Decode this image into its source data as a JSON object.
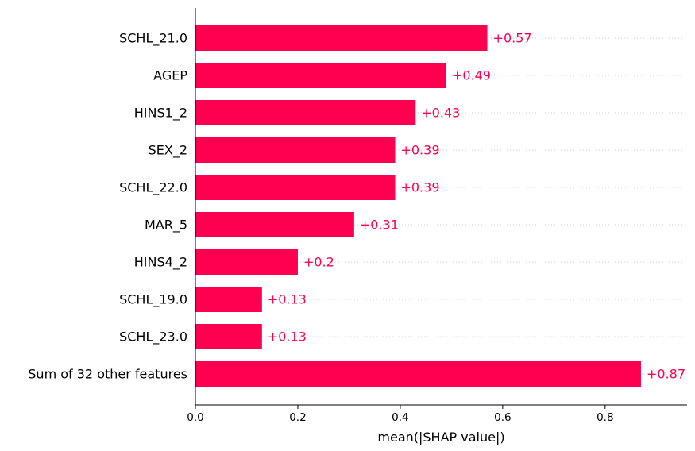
{
  "chart_data": {
    "type": "bar",
    "orientation": "horizontal",
    "categories": [
      "SCHL_21.0",
      "AGEP",
      "HINS1_2",
      "SEX_2",
      "SCHL_22.0",
      "MAR_5",
      "HINS4_2",
      "SCHL_19.0",
      "SCHL_23.0",
      "Sum of 32 other features"
    ],
    "values": [
      0.57,
      0.49,
      0.43,
      0.39,
      0.39,
      0.31,
      0.2,
      0.13,
      0.13,
      0.87
    ],
    "value_labels": [
      "+0.57",
      "+0.49",
      "+0.43",
      "+0.39",
      "+0.39",
      "+0.31",
      "+0.2",
      "+0.13",
      "+0.13",
      "+0.87"
    ],
    "xlabel": "mean(|SHAP value|)",
    "ylabel": "",
    "title": "",
    "xlim": [
      0,
      0.96
    ],
    "xticks": [
      0.0,
      0.2,
      0.4,
      0.6,
      0.8
    ],
    "xtick_labels": [
      "0.0",
      "0.2",
      "0.4",
      "0.6",
      "0.8"
    ],
    "grid": "dotted horizontal guide lines per row",
    "legend": "none",
    "colors": {
      "bar": "#ff0051",
      "value_label": "#ff0051",
      "axis": "#000000",
      "guide": "#cccccc"
    }
  }
}
